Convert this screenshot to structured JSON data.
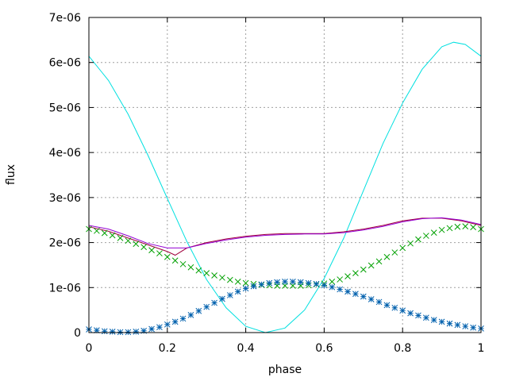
{
  "chart_data": {
    "type": "line",
    "title": "",
    "xlabel": "phase",
    "ylabel": "flux",
    "xlim": [
      0,
      1
    ],
    "ylim": [
      0,
      7e-06
    ],
    "grid": true,
    "x_ticks": [
      0,
      0.2,
      0.4,
      0.6,
      0.8,
      1
    ],
    "x_tick_labels": [
      "0",
      "0.2",
      "0.4",
      "0.6",
      "0.8",
      "1"
    ],
    "y_ticks": [
      0,
      1e-06,
      2e-06,
      3e-06,
      4e-06,
      5e-06,
      6e-06,
      7e-06
    ],
    "y_tick_labels": [
      "0",
      "1e-06",
      "2e-06",
      "3e-06",
      "4e-06",
      "5e-06",
      "6e-06",
      "7e-06"
    ],
    "series": [
      {
        "style": "line",
        "color": "#00e0e0",
        "x": [
          0,
          0.05,
          0.1,
          0.15,
          0.2,
          0.25,
          0.3,
          0.35,
          0.4,
          0.45,
          0.5,
          0.55,
          0.6,
          0.65,
          0.7,
          0.75,
          0.8,
          0.85,
          0.9,
          0.93,
          0.96,
          1.0
        ],
        "values": [
          6.14e-06,
          5.6e-06,
          4.85e-06,
          3.95e-06,
          2.98e-06,
          2.02e-06,
          1.18e-06,
          5.5e-07,
          1.4e-07,
          0.0,
          1e-07,
          5e-07,
          1.2e-06,
          2.1e-06,
          3.15e-06,
          4.2e-06,
          5.1e-06,
          5.85e-06,
          6.35e-06,
          6.45e-06,
          6.4e-06,
          6.14e-06
        ]
      },
      {
        "style": "line",
        "color": "#a0003c",
        "x": [
          0,
          0.05,
          0.1,
          0.15,
          0.2,
          0.22,
          0.25,
          0.3,
          0.35,
          0.4,
          0.45,
          0.5,
          0.55,
          0.6,
          0.65,
          0.7,
          0.75,
          0.8,
          0.85,
          0.9,
          0.95,
          1.0
        ],
        "values": [
          2.35e-06,
          2.25e-06,
          2.1e-06,
          1.95e-06,
          1.8e-06,
          1.72e-06,
          1.88e-06,
          2e-06,
          2.08e-06,
          2.14e-06,
          2.18e-06,
          2.2e-06,
          2.2e-06,
          2.2e-06,
          2.24e-06,
          2.3e-06,
          2.38e-06,
          2.48e-06,
          2.54e-06,
          2.54e-06,
          2.48e-06,
          2.38e-06
        ]
      },
      {
        "style": "line",
        "color": "#9400d3",
        "x": [
          0,
          0.05,
          0.1,
          0.15,
          0.2,
          0.25,
          0.3,
          0.35,
          0.4,
          0.45,
          0.5,
          0.55,
          0.6,
          0.65,
          0.7,
          0.75,
          0.8,
          0.85,
          0.9,
          0.95,
          1.0
        ],
        "values": [
          2.38e-06,
          2.3e-06,
          2.15e-06,
          1.98e-06,
          1.88e-06,
          1.88e-06,
          1.98e-06,
          2.06e-06,
          2.12e-06,
          2.16e-06,
          2.18e-06,
          2.19e-06,
          2.19e-06,
          2.22e-06,
          2.28e-06,
          2.36e-06,
          2.46e-06,
          2.53e-06,
          2.55e-06,
          2.5e-06,
          2.4e-06
        ]
      },
      {
        "style": "x",
        "color": "#00a000",
        "x": [
          0.0,
          0.02,
          0.04,
          0.06,
          0.08,
          0.1,
          0.12,
          0.14,
          0.16,
          0.18,
          0.2,
          0.22,
          0.24,
          0.26,
          0.28,
          0.3,
          0.32,
          0.34,
          0.36,
          0.38,
          0.4,
          0.42,
          0.44,
          0.46,
          0.48,
          0.5,
          0.52,
          0.54,
          0.56,
          0.58,
          0.6,
          0.62,
          0.64,
          0.66,
          0.68,
          0.7,
          0.72,
          0.74,
          0.76,
          0.78,
          0.8,
          0.82,
          0.84,
          0.86,
          0.88,
          0.9,
          0.92,
          0.94,
          0.96,
          0.98,
          1.0
        ],
        "values": [
          2.3e-06,
          2.26e-06,
          2.21e-06,
          2.16e-06,
          2.1e-06,
          2.04e-06,
          1.97e-06,
          1.9e-06,
          1.83e-06,
          1.76e-06,
          1.68e-06,
          1.6e-06,
          1.52e-06,
          1.45e-06,
          1.38e-06,
          1.32e-06,
          1.27e-06,
          1.22e-06,
          1.17e-06,
          1.13e-06,
          1.1e-06,
          1.08e-06,
          1.06e-06,
          1.05e-06,
          1.04e-06,
          1.04e-06,
          1.04e-06,
          1.04e-06,
          1.05e-06,
          1.07e-06,
          1.09e-06,
          1.13e-06,
          1.18e-06,
          1.25e-06,
          1.32e-06,
          1.4e-06,
          1.49e-06,
          1.58e-06,
          1.68e-06,
          1.78e-06,
          1.88e-06,
          1.98e-06,
          2.07e-06,
          2.15e-06,
          2.22e-06,
          2.28e-06,
          2.32e-06,
          2.35e-06,
          2.36e-06,
          2.34e-06,
          2.3e-06
        ]
      },
      {
        "style": "star",
        "color": "#0060ad",
        "x": [
          0.0,
          0.02,
          0.04,
          0.06,
          0.08,
          0.1,
          0.12,
          0.14,
          0.16,
          0.18,
          0.2,
          0.22,
          0.24,
          0.26,
          0.28,
          0.3,
          0.32,
          0.34,
          0.36,
          0.38,
          0.4,
          0.42,
          0.44,
          0.46,
          0.48,
          0.5,
          0.52,
          0.54,
          0.56,
          0.58,
          0.6,
          0.62,
          0.64,
          0.66,
          0.68,
          0.7,
          0.72,
          0.74,
          0.76,
          0.78,
          0.8,
          0.82,
          0.84,
          0.86,
          0.88,
          0.9,
          0.92,
          0.94,
          0.96,
          0.98,
          1.0
        ],
        "values": [
          7e-08,
          5e-08,
          3e-08,
          2e-08,
          1e-08,
          1e-08,
          2e-08,
          4e-08,
          8e-08,
          1.2e-07,
          1.8e-07,
          2.4e-07,
          3.1e-07,
          3.9e-07,
          4.8e-07,
          5.7e-07,
          6.6e-07,
          7.5e-07,
          8.3e-07,
          9.1e-07,
          9.8e-07,
          1.03e-06,
          1.07e-06,
          1.1e-06,
          1.12e-06,
          1.13e-06,
          1.13e-06,
          1.12e-06,
          1.1e-06,
          1.08e-06,
          1.05e-06,
          1.01e-06,
          9.6e-07,
          9.1e-07,
          8.6e-07,
          8e-07,
          7.4e-07,
          6.8e-07,
          6.1e-07,
          5.5e-07,
          4.9e-07,
          4.3e-07,
          3.8e-07,
          3.3e-07,
          2.8e-07,
          2.4e-07,
          2e-07,
          1.7e-07,
          1.4e-07,
          1.1e-07,
          9e-08
        ]
      }
    ]
  }
}
